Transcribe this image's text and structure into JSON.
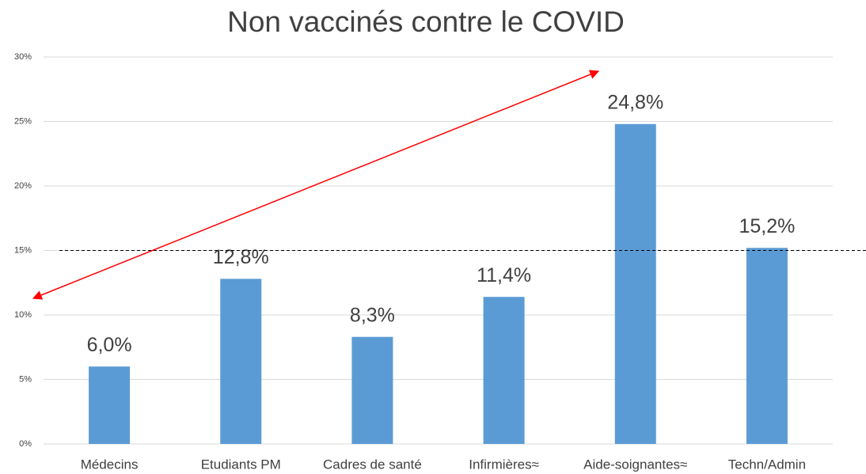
{
  "chart_data": {
    "type": "bar",
    "title": "Non vaccinés contre le COVID",
    "categories": [
      "Médecins",
      "Etudiants PM",
      "Cadres de santé",
      "Infirmières≈",
      "Aide-soignantes≈",
      "Techn/Admin"
    ],
    "values": [
      6.0,
      12.8,
      8.3,
      11.4,
      24.8,
      15.2
    ],
    "value_labels": [
      "6,0%",
      "12,8%",
      "8,3%",
      "11,4%",
      "24,8%",
      "15,2%"
    ],
    "color": "#5b9bd5",
    "ylim": [
      0,
      30
    ],
    "yticks": [
      {
        "value": 0,
        "label": "0%"
      },
      {
        "value": 5,
        "label": "5%"
      },
      {
        "value": 10,
        "label": "10%"
      },
      {
        "value": 15,
        "label": "15%"
      },
      {
        "value": 20,
        "label": "20%"
      },
      {
        "value": 25,
        "label": "25%"
      },
      {
        "value": 30,
        "label": "30%"
      }
    ],
    "grid": true,
    "reference_line": 15
  }
}
